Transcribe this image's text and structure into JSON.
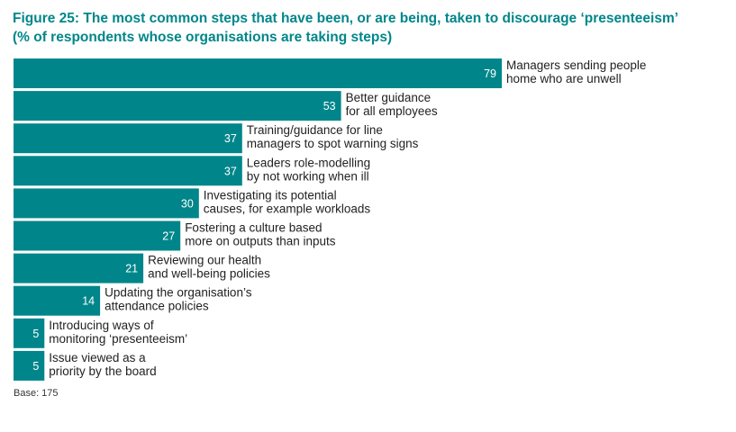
{
  "chart_data": {
    "type": "bar",
    "orientation": "horizontal",
    "title": "Figure 25: The most common steps that have been, or are being, taken to discourage ‘presenteeism’",
    "subtitle": "(% of respondents whose organisations are taking steps)",
    "categories": [
      [
        "Managers sending people",
        "home who are unwell"
      ],
      [
        "Better guidance",
        "for all employees"
      ],
      [
        "Training/guidance for line",
        "managers to spot warning signs"
      ],
      [
        "Leaders role-modelling",
        "by not working when ill"
      ],
      [
        "Investigating its potential",
        "causes, for example workloads"
      ],
      [
        "Fostering a culture based",
        "more on outputs than inputs"
      ],
      [
        "Reviewing our health",
        "and well-being policies"
      ],
      [
        "Updating the organisation’s",
        "attendance policies"
      ],
      [
        "Introducing ways of",
        "monitoring ‘presenteeism’"
      ],
      [
        "Issue viewed as a",
        "priority by the board"
      ]
    ],
    "values": [
      79,
      53,
      37,
      37,
      30,
      27,
      21,
      14,
      5,
      5
    ],
    "xlim": [
      0,
      79
    ],
    "grid": false,
    "bar_color": "#00868a",
    "value_label_color": "#ffffff",
    "label_color": "#222222"
  },
  "footnote": "Base: 175"
}
